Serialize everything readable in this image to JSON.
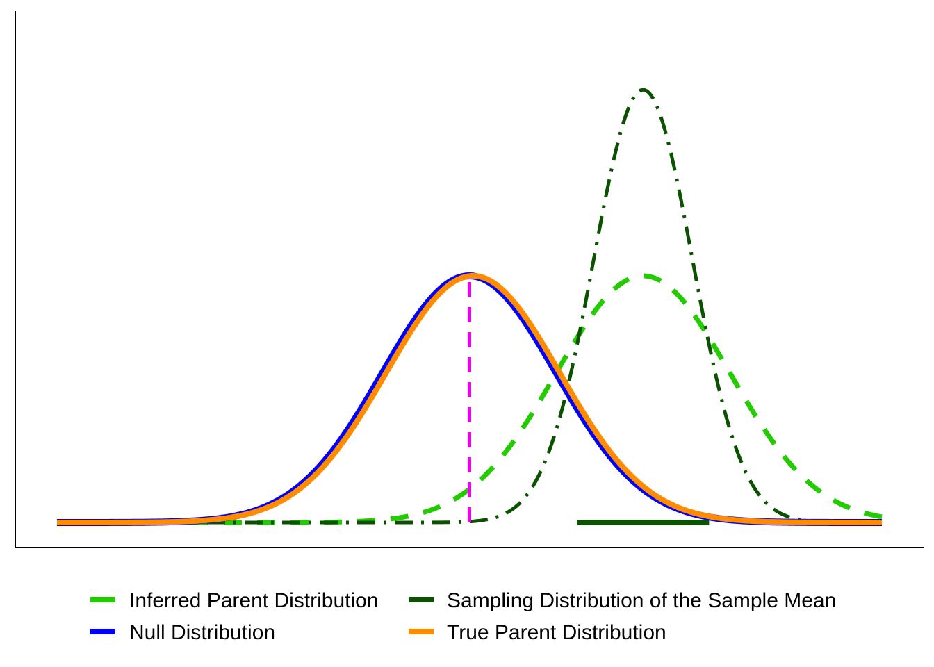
{
  "chart_data": {
    "type": "line",
    "title": "",
    "xlabel": "",
    "ylabel": "",
    "xlim": [
      -4.75,
      4.75
    ],
    "ylim": [
      0,
      1.1
    ],
    "grid": false,
    "axis_ticks": false,
    "legend_position": "bottom",
    "series": [
      {
        "name": "Inferred Parent Distribution",
        "key": "inferred",
        "distribution": "normal",
        "mean": 2.0,
        "sd": 1.0,
        "x_range": [
          -4.75,
          4.75
        ],
        "color": "#22cc00",
        "linestyle": "dashed"
      },
      {
        "name": "Sampling Distribution of the Sample Mean",
        "key": "sampling",
        "distribution": "normal",
        "mean": 2.0,
        "sd": 0.57,
        "x_range": [
          -4.75,
          4.75
        ],
        "color": "#0a5200",
        "linestyle": "dotdash"
      },
      {
        "name": "Null Distribution",
        "key": "null",
        "distribution": "normal",
        "mean": 0.0,
        "sd": 1.0,
        "x_range": [
          -4.75,
          4.75
        ],
        "color": "#0000ff",
        "linestyle": "solid"
      },
      {
        "name": "True Parent Distribution",
        "key": "true_parent",
        "distribution": "normal",
        "mean": 0.04,
        "sd": 1.0,
        "x_range": [
          -4.75,
          4.75
        ],
        "color": "#ff8c00",
        "linestyle": "solid"
      }
    ],
    "annotations": [
      {
        "kind": "vertical_line",
        "key": "null_mean_marker",
        "x": 0.0,
        "y_from": 0.0,
        "y_to": 1.0,
        "color": "#ee00ee",
        "linestyle": "dashed"
      },
      {
        "kind": "horizontal_segment",
        "key": "rejection_region",
        "x_from": 1.24,
        "x_to": 2.76,
        "y": 0.0,
        "color": "#0a5200",
        "linestyle": "solid"
      }
    ]
  },
  "legend": {
    "items": [
      {
        "label": "Inferred Parent Distribution",
        "color": "#22cc00"
      },
      {
        "label": "Sampling Distribution of the Sample Mean",
        "color": "#0a5200"
      },
      {
        "label": "Null Distribution",
        "color": "#0000ff"
      },
      {
        "label": "True Parent Distribution",
        "color": "#ff8c00"
      }
    ]
  }
}
